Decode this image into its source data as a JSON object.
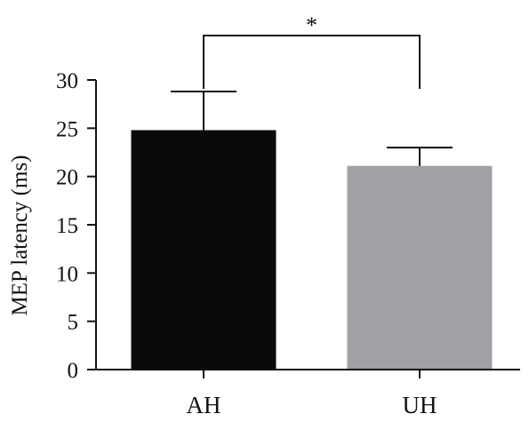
{
  "chart_data": {
    "type": "bar",
    "title": "",
    "xlabel": "",
    "ylabel": "MEP latency (ms)",
    "ylim": [
      0,
      30
    ],
    "yticks": [
      0,
      5,
      10,
      15,
      20,
      25,
      30
    ],
    "grid": false,
    "categories": [
      "AH",
      "UH"
    ],
    "values": [
      24.8,
      21.1
    ],
    "error_upper": [
      28.8,
      23.0
    ],
    "bar_colors": [
      "#0a0a0a",
      "#a0a1a5"
    ],
    "significance": {
      "label": "*",
      "between": [
        "AH",
        "UH"
      ]
    }
  }
}
